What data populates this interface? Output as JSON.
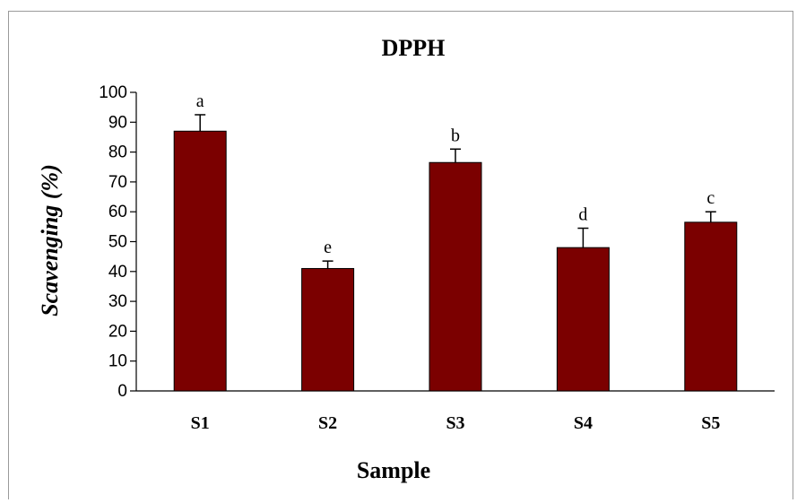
{
  "chart_data": {
    "type": "bar",
    "title": "DPPH",
    "xlabel": "Sample",
    "ylabel": "Scavenging (%)",
    "ylim": [
      0,
      100
    ],
    "yticks": [
      "0",
      "10",
      "20",
      "30",
      "40",
      "50",
      "60",
      "70",
      "80",
      "90",
      "100"
    ],
    "categories": [
      "S1",
      "S2",
      "S3",
      "S4",
      "S5"
    ],
    "values": [
      87,
      41,
      76.5,
      48,
      56.5
    ],
    "errors": [
      5.5,
      2.5,
      4.5,
      6.5,
      3.5
    ],
    "letters": [
      "a",
      "e",
      "b",
      "d",
      "c"
    ],
    "bar_color": "#7b0000",
    "grid": false,
    "legend": "none"
  }
}
